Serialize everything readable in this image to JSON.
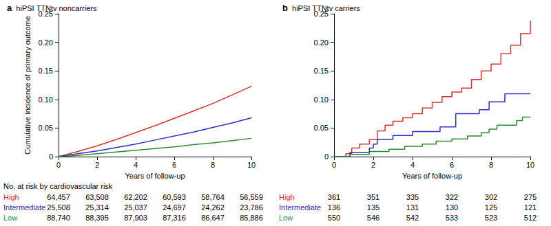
{
  "chart_data": [
    {
      "type": "line",
      "panel": "a",
      "title": "hiPSI TTNtv noncarriers",
      "xlabel": "Years of follow-up",
      "ylabel": "Cumulative incidence of primary outcome",
      "xlim": [
        0,
        10
      ],
      "xticks": [
        0,
        2,
        4,
        6,
        8,
        10
      ],
      "ylim": [
        0,
        0.25
      ],
      "yticks": [
        0,
        0.05,
        {
          "value": 0.1,
          "label": "0.10"
        },
        0.15,
        {
          "value": 0.2,
          "label": "0.20"
        },
        0.25
      ],
      "grid": false,
      "series": [
        {
          "name": "High",
          "color": "#e0302a",
          "x": [
            0,
            1,
            2,
            3,
            4,
            5,
            6,
            7,
            8,
            9,
            10
          ],
          "values": [
            0,
            0.009,
            0.019,
            0.03,
            0.042,
            0.054,
            0.067,
            0.08,
            0.093,
            0.108,
            0.123
          ]
        },
        {
          "name": "Intermediate",
          "color": "#2c2ccc",
          "x": [
            0,
            1,
            2,
            3,
            4,
            5,
            6,
            7,
            8,
            9,
            10
          ],
          "values": [
            0,
            0.005,
            0.01,
            0.016,
            0.022,
            0.029,
            0.036,
            0.043,
            0.051,
            0.059,
            0.068
          ]
        },
        {
          "name": "Low",
          "color": "#2e8a2e",
          "x": [
            0,
            1,
            2,
            3,
            4,
            5,
            6,
            7,
            8,
            9,
            10
          ],
          "values": [
            0,
            0.002,
            0.005,
            0.008,
            0.011,
            0.014,
            0.017,
            0.021,
            0.024,
            0.028,
            0.032
          ]
        }
      ],
      "risk_table": {
        "title": "No. at risk by cardiovascular risk",
        "x": [
          0,
          2,
          4,
          6,
          8,
          10
        ],
        "rows": [
          {
            "name": "High",
            "color": "#e0302a",
            "values": [
              64457,
              63508,
              62202,
              60593,
              58764,
              56559
            ],
            "value_labels": [
              "64,457",
              "63,508",
              "62,202",
              "60,593",
              "58,764",
              "56,559"
            ]
          },
          {
            "name": "Intermediate",
            "color": "#2c2ccc",
            "values": [
              25508,
              25314,
              25037,
              24697,
              24262,
              23786
            ],
            "value_labels": [
              "25,508",
              "25,314",
              "25,037",
              "24,697",
              "24,262",
              "23,786"
            ]
          },
          {
            "name": "Low",
            "color": "#2e8a2e",
            "values": [
              88740,
              88395,
              87903,
              87316,
              86647,
              85886
            ],
            "value_labels": [
              "88,740",
              "88,395",
              "87,903",
              "87,316",
              "86,647",
              "85,886"
            ]
          }
        ]
      }
    },
    {
      "type": "step",
      "panel": "b",
      "title": "hiPSI TTNtv carriers",
      "xlabel": "Years of follow-up",
      "xlim": [
        0,
        10
      ],
      "xticks": [
        0,
        2,
        4,
        6,
        8,
        10
      ],
      "ylim": [
        0,
        0.25
      ],
      "yticks": [
        0,
        0.05,
        {
          "value": 0.1,
          "label": "0.10"
        },
        0.15,
        {
          "value": 0.2,
          "label": "0.20"
        },
        0.25
      ],
      "grid": false,
      "series": [
        {
          "name": "High",
          "color": "#e0302a",
          "x": [
            0,
            0.6,
            0.9,
            1.3,
            1.8,
            2.2,
            2.6,
            3,
            3.5,
            4,
            4.5,
            5,
            5.5,
            6,
            6.5,
            7,
            7.5,
            8,
            8.5,
            9,
            9.5,
            10
          ],
          "values": [
            0,
            0.005,
            0.015,
            0.022,
            0.03,
            0.045,
            0.055,
            0.062,
            0.068,
            0.075,
            0.085,
            0.095,
            0.105,
            0.113,
            0.12,
            0.135,
            0.15,
            0.162,
            0.18,
            0.195,
            0.215,
            0.238
          ]
        },
        {
          "name": "Intermediate",
          "color": "#2c2ccc",
          "x": [
            0,
            0.8,
            1.8,
            2,
            2.2,
            3,
            4,
            5.4,
            6.2,
            7.4,
            7.9,
            8.7,
            10
          ],
          "values": [
            0,
            0.007,
            0.015,
            0.022,
            0.03,
            0.037,
            0.044,
            0.052,
            0.075,
            0.082,
            0.096,
            0.11,
            0.11
          ]
        },
        {
          "name": "Low",
          "color": "#2e8a2e",
          "x": [
            0,
            0.8,
            1.8,
            2.8,
            3.6,
            4.5,
            5.2,
            6,
            6.8,
            7.5,
            7.9,
            8.3,
            9.3,
            9.6,
            10
          ],
          "values": [
            0,
            0.004,
            0.009,
            0.013,
            0.018,
            0.022,
            0.027,
            0.031,
            0.036,
            0.042,
            0.048,
            0.055,
            0.063,
            0.069,
            0.069
          ]
        }
      ],
      "risk_table": {
        "x": [
          0,
          2,
          4,
          6,
          8,
          10
        ],
        "rows": [
          {
            "name": "High",
            "color": "#e0302a",
            "values": [
              361,
              351,
              335,
              322,
              302,
              275
            ]
          },
          {
            "name": "Intermediate",
            "color": "#2c2ccc",
            "values": [
              136,
              135,
              131,
              130,
              125,
              121
            ]
          },
          {
            "name": "Low",
            "color": "#2e8a2e",
            "values": [
              550,
              546,
              542,
              533,
              523,
              512
            ]
          }
        ]
      }
    }
  ]
}
